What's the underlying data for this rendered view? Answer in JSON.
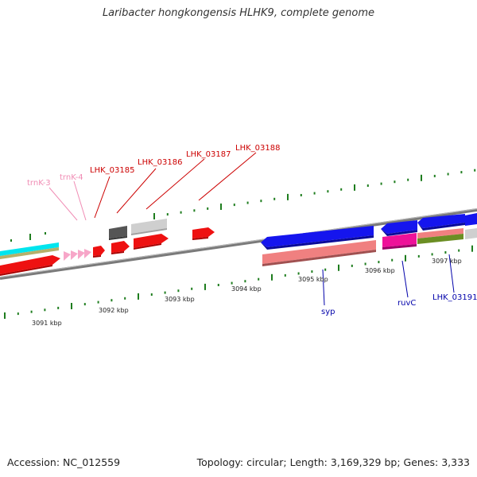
{
  "title": "Laribacter hongkongensis HLHK9, complete genome",
  "footer": {
    "accession": "Accession: NC_012559",
    "summary": "Topology: circular; Length: 3,169,329 bp; Genes: 3,333"
  },
  "colors": {
    "backbone": "#888888",
    "tick": "#1e7d1e",
    "forward_label": "#cc0000",
    "trna_label": "#f08cb4",
    "reverse_label": "#0000aa"
  },
  "scale_labels": [
    "3091 kbp",
    "3092 kbp",
    "3093 kbp",
    "3094 kbp",
    "3095 kbp",
    "3096 kbp",
    "3097 kbp"
  ],
  "gene_labels_top": [
    "trnK-3",
    "trnK-4",
    "LHK_03185",
    "LHK_03186",
    "LHK_03187",
    "LHK_03188"
  ],
  "gene_labels_bottom": [
    "syp",
    "ruvC",
    "LHK_03191"
  ],
  "feature_tracks": [
    {
      "name": "cyan",
      "color": "#00e5ee"
    },
    {
      "name": "olive",
      "color": "#b5b06a"
    },
    {
      "name": "red",
      "color": "#ee1111"
    },
    {
      "name": "pink",
      "color": "#f7a6c8"
    },
    {
      "name": "dark-gray",
      "color": "#555555"
    },
    {
      "name": "light-gray",
      "color": "#cfcfcf"
    },
    {
      "name": "blue",
      "color": "#1515ee"
    },
    {
      "name": "salmon",
      "color": "#f08080"
    },
    {
      "name": "magenta",
      "color": "#ee1199"
    },
    {
      "name": "green",
      "color": "#6b8e23"
    }
  ]
}
